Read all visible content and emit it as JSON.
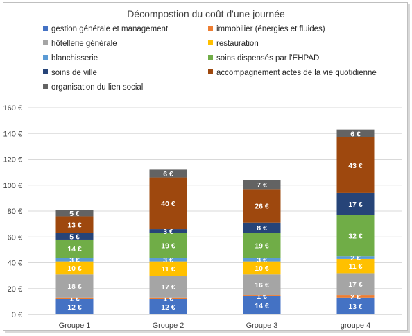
{
  "chart_data": {
    "type": "bar",
    "stacked": true,
    "title": "Décompostion du coût d'une journée",
    "categories": [
      "Groupe 1",
      "Groupe 2",
      "Groupe 3",
      "groupe 4"
    ],
    "ylim": [
      0,
      160
    ],
    "yticks": [
      "0 €",
      "20 €",
      "40 €",
      "60 €",
      "80 €",
      "100 €",
      "120 €",
      "140 €",
      "160 €"
    ],
    "grid": true,
    "legend_position": "top",
    "series": [
      {
        "name": "gestion générale et management",
        "color": "#4472c4",
        "values": [
          12,
          12,
          14,
          13
        ],
        "labels": [
          "12 €",
          "12 €",
          "14 €",
          "13 €"
        ]
      },
      {
        "name": "immobilier (énergies et fluides)",
        "color": "#ed7d31",
        "values": [
          1,
          1,
          1,
          2
        ],
        "labels": [
          "1 €",
          "1 €",
          "1 €",
          "2 €"
        ]
      },
      {
        "name": "hôtellerie générale",
        "color": "#a5a5a5",
        "values": [
          18,
          17,
          16,
          17
        ],
        "labels": [
          "18 €",
          "17 €",
          "16 €",
          "17 €"
        ]
      },
      {
        "name": "restauration",
        "color": "#ffc000",
        "values": [
          10,
          11,
          10,
          11
        ],
        "labels": [
          "10 €",
          "11 €",
          "10 €",
          "11 €"
        ]
      },
      {
        "name": "blanchisserie",
        "color": "#5b9bd5",
        "values": [
          3,
          3,
          3,
          2
        ],
        "labels": [
          "3 €",
          "3 €",
          "3 €",
          "2 €"
        ]
      },
      {
        "name": "soins dispensés par l'EHPAD",
        "color": "#70ad47",
        "values": [
          14,
          19,
          19,
          32
        ],
        "labels": [
          "14 €",
          "19 €",
          "19 €",
          "32 €"
        ]
      },
      {
        "name": "soins de ville",
        "color": "#264478",
        "values": [
          5,
          3,
          8,
          17
        ],
        "labels": [
          "5 €",
          "3 €",
          "8 €",
          "17 €"
        ]
      },
      {
        "name": "accompagnement  actes de la vie quotidienne",
        "color": "#9e480e",
        "values": [
          13,
          40,
          26,
          43
        ],
        "labels": [
          "13 €",
          "40 €",
          "26 €",
          "43 €"
        ]
      },
      {
        "name": "organisation du lien social",
        "color": "#636363",
        "values": [
          5,
          6,
          7,
          6
        ],
        "labels": [
          "5 €",
          "6 €",
          "7 €",
          "6 €"
        ]
      }
    ]
  }
}
